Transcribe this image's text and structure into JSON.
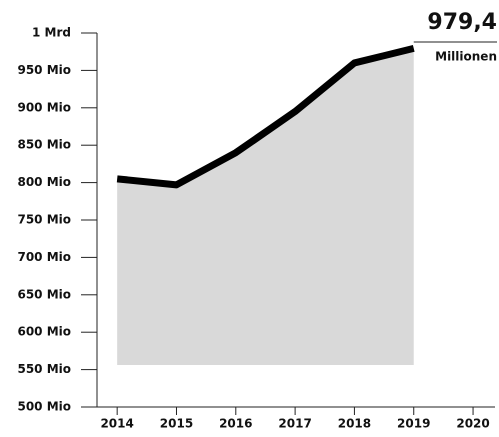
{
  "chart_data": {
    "type": "line",
    "x": [
      2014,
      2015,
      2016,
      2017,
      2018,
      2019
    ],
    "series": [
      {
        "color": "#000000",
        "values": [
          805,
          797,
          840,
          895,
          960,
          979.4
        ],
        "value_labels": [
          null,
          null,
          null,
          null,
          null,
          "979,4"
        ]
      }
    ],
    "annotation": "Millionen",
    "area_color": "#d9d9d9",
    "xlim": [
      2013.66,
      2020.37
    ],
    "xticks": [
      2014,
      2015,
      2016,
      2017,
      2018,
      2019,
      2020
    ],
    "ylim": [
      500,
      1000
    ],
    "yticks": [
      {
        "value": 500,
        "label": "500 Mio"
      },
      {
        "value": 550,
        "label": "550 Mio"
      },
      {
        "value": 600,
        "label": "600 Mio"
      },
      {
        "value": 650,
        "label": "650 Mio"
      },
      {
        "value": 700,
        "label": "700 Mio"
      },
      {
        "value": 750,
        "label": "750 Mio"
      },
      {
        "value": 800,
        "label": "800 Mio"
      },
      {
        "value": 850,
        "label": "850 Mio"
      },
      {
        "value": 900,
        "label": "900 Mio"
      },
      {
        "value": 950,
        "label": "950 Mio"
      },
      {
        "value": 1000,
        "label": "1 Mrd"
      }
    ]
  }
}
